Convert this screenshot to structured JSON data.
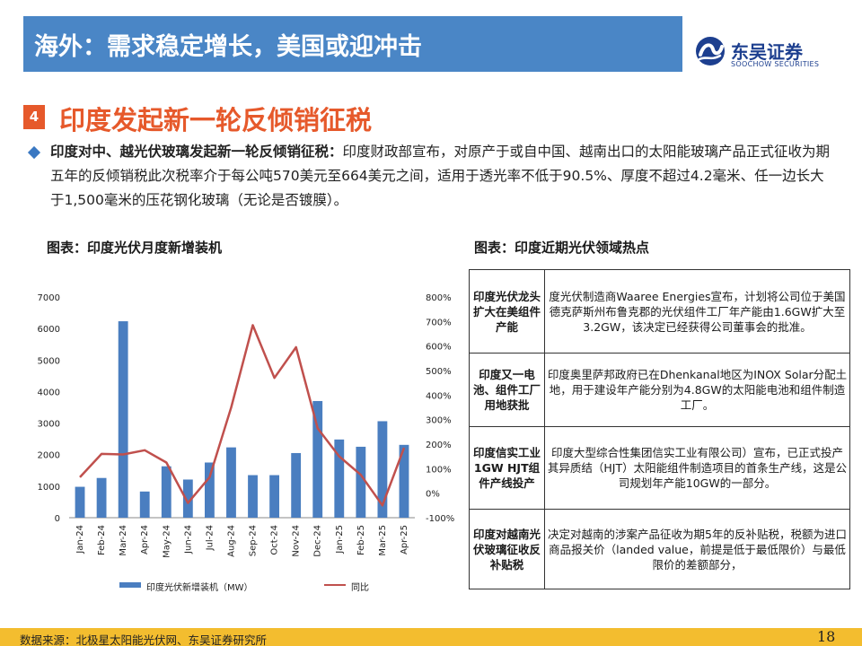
{
  "header": {
    "title": "海外：需求稳定增长，美国或迎冲击"
  },
  "logo": {
    "cn": "东吴证券",
    "en": "SOOCHOW SECURITIES",
    "icon": "soochow-logo-icon"
  },
  "section": {
    "number": "4",
    "title": "印度发起新一轮反倾销征税"
  },
  "body": {
    "lead": "印度对中、越光伏玻璃发起新一轮反倾销征税：",
    "text": "印度财政部宣布，对原产于或自中国、越南出口的太阳能玻璃产品正式征收为期五年的反倾销税此次税率介于每公吨570美元至664美元之间，适用于透光率不低于90.5%、厚度不超过4.2毫米、任一边长大于1,500毫米的压花钢化玻璃（无论是否镀膜）。"
  },
  "chart_left_title": "图表：印度光伏月度新增装机",
  "chart_right_title": "图表：印度近期光伏领域热点",
  "chart_data": {
    "type": "bar",
    "categories": [
      "Jan-24",
      "Feb-24",
      "Mar-24",
      "Apr-24",
      "May-24",
      "Jun-24",
      "Jul-24",
      "Aug-24",
      "Sep-24",
      "Oct-24",
      "Nov-24",
      "Dec-24",
      "Jan-25",
      "Feb-25",
      "Mar-25",
      "Apr-25"
    ],
    "series": [
      {
        "name": "印度光伏新增装机（MW）",
        "type": "bar",
        "axis": "left",
        "values": [
          980,
          1260,
          6230,
          830,
          1630,
          1210,
          1750,
          2230,
          1350,
          1350,
          2050,
          3700,
          2480,
          2250,
          3060,
          2310
        ]
      },
      {
        "name": "同比",
        "type": "line",
        "axis": "right",
        "values": [
          65,
          160,
          158,
          175,
          125,
          -40,
          65,
          350,
          685,
          470,
          595,
          265,
          150,
          75,
          -50,
          185
        ]
      }
    ],
    "yleft": {
      "lim": [
        0,
        7000
      ],
      "ticks": [
        "0",
        "1000",
        "2000",
        "3000",
        "4000",
        "5000",
        "6000",
        "7000"
      ]
    },
    "yright": {
      "lim": [
        -100,
        800
      ],
      "ticks": [
        "-100%",
        "0%",
        "100%",
        "200%",
        "300%",
        "400%",
        "500%",
        "600%",
        "700%",
        "800%"
      ]
    },
    "colors": {
      "bar": "#4a7ec0",
      "line": "#c0504d"
    },
    "grid": false,
    "legend": "bottom"
  },
  "hot_table": [
    {
      "topic": "印度光伏龙头扩大在美组件产能",
      "desc": "度光伏制造商Waaree Energies宣布，计划将公司位于美国德克萨斯州布鲁克郡的光伏组件工厂年产能由1.6GW扩大至3.2GW，该决定已经获得公司董事会的批准。"
    },
    {
      "topic": "印度又一电池、组件工厂用地获批",
      "desc": "印度奥里萨邦政府已在Dhenkanal地区为INOX Solar分配土地，用于建设年产能分别为4.8GW的太阳能电池和组件制造工厂。"
    },
    {
      "topic": "印度信实工业1GW HJT组件产线投产",
      "desc": "印度大型综合性集团信实工业有限公司）宣布，已正式投产其异质结（HJT）太阳能组件制造项目的首条生产线，这是公司规划年产能10GW的一部分。"
    },
    {
      "topic": "印度对越南光伏玻璃征收反补贴税",
      "desc": "决定对越南的涉案产品征收为期5年的反补贴税，税额为进口商品报关价（landed value，前提是低于最低限价）与最低限价的差额部分，"
    }
  ],
  "footer": {
    "source": "数据来源：北极星太阳能光伏网、东吴证券研究所",
    "page": "18"
  }
}
